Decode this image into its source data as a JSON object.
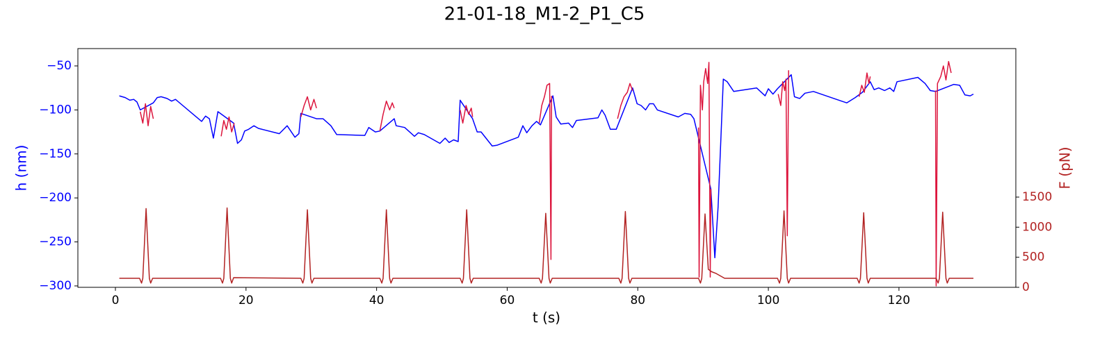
{
  "chart_data": {
    "type": "line",
    "title": "21-01-18_M1-2_P1_C5",
    "xlabel": "t (s)",
    "ylabel": "h (nm)",
    "y2label": "F (pN)",
    "ycolor": "#0000ff",
    "y2color": "#b22222",
    "xlim": [
      -5.75,
      137.9
    ],
    "ylim": [
      -301.6,
      -30.3
    ],
    "y2lim": [
      0,
      3969
    ],
    "xticks": [
      0,
      20,
      40,
      60,
      80,
      100,
      120
    ],
    "yticks": [
      {
        "value": -300,
        "label": "−300"
      },
      {
        "value": -250,
        "label": "−250"
      },
      {
        "value": -200,
        "label": "−200"
      },
      {
        "value": -150,
        "label": "−150"
      },
      {
        "value": -100,
        "label": "−100"
      },
      {
        "value": -50,
        "label": "−50"
      }
    ],
    "y2ticks": [
      0,
      500,
      1000,
      1500
    ],
    "series": [
      {
        "color": "#0000ff",
        "axis": "y",
        "x": [
          0.6,
          1.5,
          2.2,
          2.8,
          3.3,
          3.8,
          5.8,
          6.4,
          7.0,
          7.9,
          8.6,
          9.2,
          13.2,
          13.8,
          14.4,
          15.0,
          15.7,
          18.1,
          18.7,
          19.3,
          19.8,
          20.4,
          21.2,
          21.9,
          25.1,
          26.3,
          27.5,
          28.1,
          28.4,
          30.8,
          31.8,
          33.0,
          33.9,
          38.2,
          38.8,
          39.8,
          40.5,
          42.7,
          43.0,
          44.3,
          45.2,
          45.8,
          46.4,
          47.3,
          49.7,
          50.5,
          51.1,
          51.8,
          52.5,
          52.8,
          54.7,
          55.4,
          56.0,
          57.7,
          58.5,
          61.7,
          62.4,
          63.0,
          63.8,
          64.5,
          65.1,
          67.0,
          67.5,
          68.2,
          69.4,
          70.0,
          70.6,
          73.9,
          74.5,
          75.0,
          75.8,
          76.7,
          79.2,
          79.9,
          80.5,
          81.2,
          81.8,
          82.4,
          83.0,
          86.2,
          87.2,
          88.1,
          88.6,
          91.2,
          91.8,
          92.3,
          93.1,
          93.7,
          94.7,
          98.2,
          99.5,
          100.0,
          100.7,
          101.4,
          103.5,
          104.0,
          104.8,
          105.6,
          106.9,
          111.2,
          112.0,
          113.3,
          114.4,
          115.6,
          116.2,
          116.9,
          117.8,
          118.6,
          119.2,
          119.7,
          122.9,
          124.0,
          124.8,
          125.6,
          128.4,
          129.3,
          130.1,
          130.9,
          131.4
        ],
        "values": [
          -84,
          -86,
          -89,
          -88,
          -91,
          -100,
          -92,
          -86,
          -85,
          -87,
          -90,
          -88,
          -113,
          -107,
          -110,
          -132,
          -102,
          -115,
          -138,
          -134,
          -124,
          -122,
          -118,
          -121,
          -127,
          -118,
          -131,
          -127,
          -104,
          -110,
          -110,
          -118,
          -128,
          -129,
          -120,
          -125,
          -124,
          -110,
          -118,
          -120,
          -126,
          -130,
          -126,
          -128,
          -138,
          -132,
          -137,
          -134,
          -136,
          -89,
          -110,
          -125,
          -125,
          -141,
          -140,
          -131,
          -118,
          -126,
          -118,
          -113,
          -117,
          -84,
          -108,
          -116,
          -115,
          -120,
          -112,
          -109,
          -100,
          -106,
          -122,
          -122,
          -75,
          -93,
          -95,
          -100,
          -93,
          -93,
          -100,
          -108,
          -104,
          -105,
          -110,
          -190,
          -268,
          -210,
          -65,
          -68,
          -79,
          -75,
          -84,
          -76,
          -82,
          -76,
          -60,
          -85,
          -87,
          -81,
          -79,
          -90,
          -92,
          -86,
          -80,
          -68,
          -77,
          -75,
          -78,
          -75,
          -79,
          -68,
          -63,
          -70,
          -78,
          -79,
          -71,
          -72,
          -83,
          -84,
          -82
        ]
      },
      {
        "color": "#dc143c",
        "axis": "y",
        "x": [
          3.8,
          4.2,
          4.6,
          5.0,
          5.4,
          5.8,
          null,
          16.2,
          16.6,
          17.0,
          17.4,
          17.8,
          18.2,
          null,
          28.4,
          28.9,
          29.4,
          29.9,
          30.4,
          30.8,
          null,
          40.5,
          41.0,
          41.5,
          42.0,
          42.4,
          42.7,
          null,
          52.8,
          53.2,
          53.7,
          54.1,
          54.5,
          54.7,
          null,
          64.9,
          65.3,
          65.7,
          66.1,
          66.5,
          66.7,
          66.8,
          null,
          76.9,
          77.4,
          77.9,
          78.4,
          78.8,
          79.2,
          null,
          89.3,
          89.4,
          89.6,
          89.9,
          90.1,
          90.4,
          90.7,
          90.9,
          91.1,
          91.2,
          null,
          101.5,
          101.9,
          102.2,
          102.5,
          102.7,
          102.9,
          103.1,
          null,
          113.9,
          114.3,
          114.7,
          115.1,
          115.4,
          115.6,
          null,
          125.6,
          125.7,
          125.9,
          126.4,
          126.8,
          127.2,
          127.6,
          128.0
        ],
        "values": [
          -102,
          -115,
          -93,
          -118,
          -96,
          -110,
          null,
          -130,
          -112,
          -122,
          -108,
          -125,
          -115,
          null,
          -108,
          -95,
          -85,
          -100,
          -88,
          -98,
          null,
          -124,
          -105,
          -90,
          -100,
          -92,
          -98,
          null,
          -100,
          -115,
          -95,
          -105,
          -98,
          -108,
          null,
          -115,
          -95,
          -85,
          -72,
          -70,
          -270,
          -84,
          null,
          -110,
          -95,
          -85,
          -80,
          -70,
          -78,
          null,
          -120,
          -290,
          -72,
          -100,
          -68,
          -53,
          -70,
          -46,
          -290,
          -190,
          null,
          -82,
          -95,
          -68,
          -78,
          -65,
          -243,
          -55,
          null,
          -85,
          -72,
          -80,
          -58,
          -70,
          -62,
          null,
          -78,
          -300,
          -70,
          -62,
          -50,
          -66,
          -45,
          -58
        ]
      },
      {
        "color": "#b22222",
        "axis": "y2",
        "x": [
          0.6,
          3.7,
          4.0,
          4.2,
          4.7,
          5.2,
          5.4,
          5.7,
          16.1,
          16.4,
          16.6,
          17.1,
          17.6,
          17.8,
          18.1,
          28.4,
          28.7,
          28.9,
          29.4,
          29.9,
          30.1,
          30.4,
          40.5,
          40.8,
          41.0,
          41.5,
          42.0,
          42.2,
          42.5,
          52.8,
          53.1,
          53.3,
          53.8,
          54.3,
          54.5,
          54.8,
          64.9,
          65.2,
          65.4,
          65.9,
          66.4,
          66.6,
          66.9,
          77.1,
          77.4,
          77.6,
          78.1,
          78.6,
          78.8,
          79.1,
          89.3,
          89.6,
          89.8,
          90.3,
          90.8,
          91.3,
          92.0,
          92.8,
          93.3,
          101.4,
          101.7,
          101.9,
          102.4,
          102.9,
          103.1,
          103.4,
          113.6,
          113.9,
          114.1,
          114.6,
          115.1,
          115.3,
          115.6,
          125.7,
          126.0,
          126.2,
          126.7,
          127.2,
          127.4,
          127.7,
          131.4
        ],
        "values": [
          150,
          150,
          70,
          150,
          1310,
          150,
          70,
          150,
          150,
          70,
          150,
          1320,
          150,
          70,
          160,
          150,
          70,
          150,
          1290,
          150,
          70,
          150,
          150,
          70,
          150,
          1290,
          150,
          70,
          150,
          150,
          70,
          150,
          1290,
          150,
          70,
          150,
          150,
          70,
          150,
          1230,
          150,
          70,
          150,
          150,
          70,
          150,
          1260,
          150,
          70,
          150,
          150,
          70,
          150,
          1220,
          300,
          260,
          230,
          180,
          150,
          150,
          70,
          150,
          1270,
          150,
          70,
          150,
          150,
          70,
          150,
          1240,
          150,
          70,
          150,
          150,
          70,
          150,
          1250,
          150,
          70,
          150,
          150
        ]
      }
    ]
  }
}
